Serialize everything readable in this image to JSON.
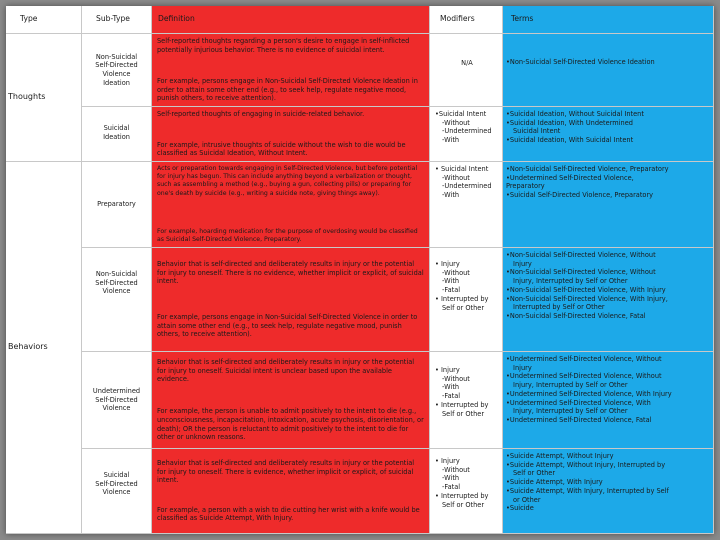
{
  "headers": {
    "type": "Type",
    "subtype": "Sub-Type",
    "definition": "Definition",
    "modifiers": "Modifiers",
    "terms": "Terms"
  },
  "types": {
    "thoughts": "Thoughts",
    "behaviors": "Behaviors"
  },
  "rows": [
    {
      "subtype_lines": [
        "Non-Suicidal",
        "Self-Directed",
        "Violence",
        "Ideation"
      ],
      "definition_a": "Self-reported thoughts regarding a person's desire to engage in self-inflicted potentially injurious behavior. There is no evidence of suicidal intent.",
      "definition_b": "For example, persons engage in Non-Suicidal Self-Directed Violence Ideation in order to attain some other end (e.g., to seek help, regulate negative mood, punish others, to receive attention).",
      "modifiers": [
        "N/A"
      ],
      "terms": [
        "•Non-Suicidal Self-Directed Violence Ideation"
      ]
    },
    {
      "subtype_lines": [
        "Suicidal",
        "Ideation"
      ],
      "definition_a": "Self-reported thoughts of engaging in suicide-related behavior.",
      "definition_b": "For example, intrusive thoughts of suicide without the wish to die would be classified as Suicidal Ideation, Without Intent.",
      "modifiers": [
        "•Suicidal Intent",
        "-Without",
        "-Undetermined",
        "-With"
      ],
      "terms": [
        "•Suicidal Ideation, Without Suicidal Intent",
        "•Suicidal Ideation, With Undetermined",
        "Suicidal Intent",
        "•Suicidal Ideation, With Suicidal Intent"
      ]
    },
    {
      "subtype_lines": [
        "Preparatory"
      ],
      "definition_a": "Acts or preparation towards engaging in Self-Directed Violence, but before potential for injury has begun. This can include anything beyond a verbalization or thought, such as assembling a method (e.g., buying a gun, collecting pills) or preparing for one's death by suicide (e.g., writing a suicide note, giving things away).",
      "definition_b": "For example, hoarding medication for the purpose of overdosing would be classified as Suicidal Self-Directed Violence, Preparatory.",
      "modifiers": [
        "• Suicidal Intent",
        "-Without",
        "-Undetermined",
        "-With"
      ],
      "terms": [
        "•Non-Suicidal Self-Directed Violence, Preparatory",
        "•Undetermined Self-Directed Violence,",
        "Preparatory",
        "•Suicidal Self-Directed Violence, Preparatory"
      ]
    },
    {
      "subtype_lines": [
        "Non-Suicidal",
        "Self-Directed",
        "Violence"
      ],
      "definition_a": "Behavior that is self-directed and deliberately results in injury or the potential for injury to oneself. There is no evidence, whether implicit or explicit, of suicidal intent.",
      "definition_b": "For example, persons engage in Non-Suicidal Self-Directed Violence in order to attain some other end (e.g., to seek help, regulate negative mood, punish others, to receive attention).",
      "modifiers": [
        "• Injury",
        "-Without",
        "-With",
        "-Fatal",
        "• Interrupted by",
        "Self or Other"
      ],
      "terms": [
        "•Non-Suicidal Self-Directed Violence, Without",
        "Injury",
        "•Non-Suicidal Self-Directed Violence, Without",
        "Injury, Interrupted by Self or Other",
        "•Non-Suicidal Self-Directed Violence, With Injury",
        "•Non-Suicidal Self-Directed Violence, With Injury,",
        "Interrupted by Self or Other",
        "•Non-Suicidal Self-Directed Violence, Fatal"
      ]
    },
    {
      "subtype_lines": [
        "Undetermined",
        "Self-Directed",
        "Violence"
      ],
      "definition_a": "Behavior that is self-directed and deliberately results in injury or the potential for injury to oneself. Suicidal intent is unclear based upon the available evidence.",
      "definition_b": "For example, the person is unable to admit positively to the intent to die (e.g., unconsciousness, incapacitation, intoxication, acute psychosis, disorientation, or death); OR the person is reluctant to admit positively to the intent to die for other or unknown reasons.",
      "modifiers": [
        "• Injury",
        "-Without",
        "-With",
        "-Fatal",
        "• Interrupted by",
        "Self or Other"
      ],
      "terms": [
        "•Undetermined Self-Directed Violence, Without",
        "Injury",
        "•Undetermined Self-Directed Violence, Without",
        "Injury, Interrupted by Self or Other",
        "•Undetermined Self-Directed Violence, With Injury",
        "•Undetermined Self-Directed Violence, With",
        "Injury, Interrupted by Self or Other",
        "•Undetermined Self-Directed Violence, Fatal"
      ]
    },
    {
      "subtype_lines": [
        "Suicidal",
        "Self-Directed",
        "Violence"
      ],
      "definition_a": "Behavior that is self-directed and deliberately results in injury or the potential for injury to oneself. There is evidence, whether implicit or explicit, of suicidal intent.",
      "definition_b": "For example, a person with a wish to die cutting her wrist with a knife would be classified as Suicide Attempt, With Injury.",
      "modifiers": [
        "• Injury",
        "-Without",
        "-With",
        "-Fatal",
        "• Interrupted by",
        "Self or Other"
      ],
      "terms": [
        "•Suicide Attempt, Without Injury",
        "•Suicide Attempt, Without Injury, Interrupted by",
        "Self or Other",
        "•Suicide Attempt, With Injury",
        "•Suicide Attempt, With Injury, Interrupted by Self",
        "or Other",
        "•Suicide"
      ]
    }
  ],
  "colors": {
    "definition_bg": "#ee2b2b",
    "modifiers_bg": "#ffffff",
    "terms_bg": "#1da9e8"
  }
}
